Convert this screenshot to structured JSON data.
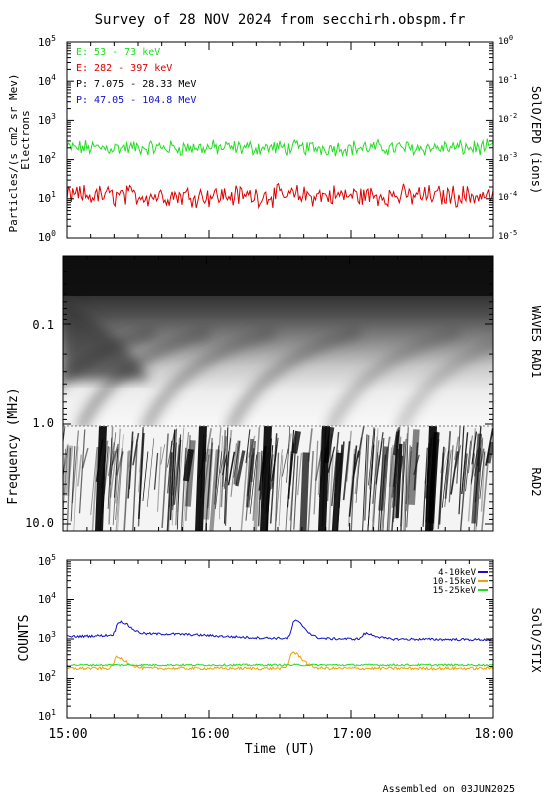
{
  "title": "Survey of 28 NOV 2024 from secchirh.obspm.fr",
  "footer": "Assembled on 03JUN2025",
  "colors": {
    "green": "#22dd22",
    "red": "#dd0000",
    "black": "#000000",
    "blue": "#1010c8",
    "orange": "#f0a000",
    "stix_green": "#22dd22"
  },
  "chart_data": [
    {
      "type": "line",
      "panel": "epd",
      "ylabel_left": "Particles/(s cm2 sr Mev)",
      "ylabel_left2": "Electrons",
      "ylabel_right": "SolO/EPD (ions)",
      "yscale": "log",
      "ylim": [
        1,
        100000
      ],
      "ylim_right": [
        1e-05,
        1
      ],
      "yticks": [
        "10^0",
        "10^1",
        "10^2",
        "10^3",
        "10^4",
        "10^5"
      ],
      "yticks_right": [
        "10^-5",
        "10^-4",
        "10^-3",
        "10^-2",
        "10^-1",
        "10^0"
      ],
      "xlim": [
        "15:00",
        "18:00"
      ],
      "legend_position": "top-left",
      "series": [
        {
          "name": "E: 53 - 73 keV",
          "color": "#22dd22",
          "level": 200,
          "spread": 0.16
        },
        {
          "name": "E: 282 - 397 keV",
          "color": "#dd0000",
          "level": 12,
          "spread": 0.22
        },
        {
          "name": "P: 7.075 - 28.33 MeV",
          "color": "#000000",
          "level": null
        },
        {
          "name": "P: 47.05 - 104.8 MeV",
          "color": "#1010c8",
          "level": null
        }
      ]
    },
    {
      "type": "heatmap",
      "panel": "waves",
      "ylabel": "Frequency (MHz)",
      "yscale": "log",
      "ylim": [
        0.025,
        16
      ],
      "yticks": [
        "0.1",
        "1.0",
        "10.0"
      ],
      "label_rad1": "WAVES RAD1",
      "label_rad2": "RAD2",
      "xlim": [
        "15:00",
        "18:00"
      ]
    },
    {
      "type": "line",
      "panel": "stix",
      "ylabel": "COUNTS",
      "ylabel_right": "SolO/STIX",
      "yscale": "log",
      "ylim": [
        10,
        100000
      ],
      "yticks": [
        "10^1",
        "10^2",
        "10^3",
        "10^4",
        "10^5"
      ],
      "legend_position": "top-right",
      "xlabel": "Time (UT)",
      "xticks": [
        "15:00",
        "16:00",
        "17:00",
        "18:00"
      ],
      "series": [
        {
          "name": "4-10keV",
          "color": "#1010c8",
          "baseline": 1100,
          "peaks": [
            {
              "t": "15:22",
              "v": 2400
            },
            {
              "t": "16:36",
              "v": 3100
            },
            {
              "t": "17:06",
              "v": 1500
            }
          ]
        },
        {
          "name": "10-15keV",
          "color": "#f0a000",
          "baseline": 180,
          "peaks": [
            {
              "t": "15:21",
              "v": 340
            },
            {
              "t": "16:35",
              "v": 460
            }
          ]
        },
        {
          "name": "15-25keV",
          "color": "#22dd22",
          "baseline": 220,
          "peaks": []
        }
      ]
    }
  ]
}
